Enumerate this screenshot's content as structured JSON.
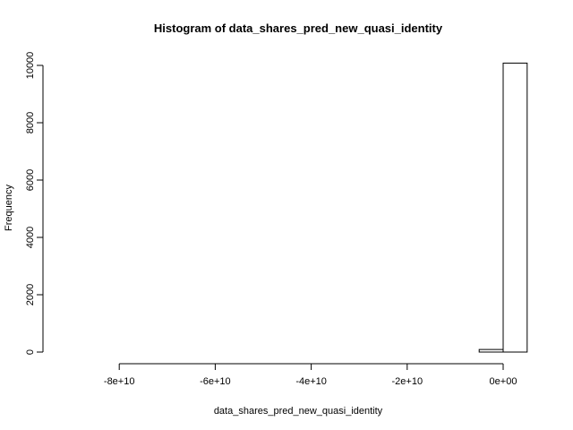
{
  "chart_data": {
    "type": "bar",
    "title": "Histogram of data_shares_pred_new_quasi_identity",
    "xlabel": "data_shares_pred_new_quasi_identity",
    "ylabel": "Frequency",
    "xlim": [
      -90000000000,
      5000000000
    ],
    "ylim": [
      0,
      10000
    ],
    "x_ticks": [
      -80000000000,
      -60000000000,
      -40000000000,
      -20000000000,
      0
    ],
    "x_tick_labels": [
      "-8e+10",
      "-6e+10",
      "-4e+10",
      "-2e+10",
      "0e+00"
    ],
    "y_ticks": [
      0,
      2000,
      4000,
      6000,
      8000,
      10000
    ],
    "y_tick_labels": [
      "0",
      "2000",
      "4000",
      "6000",
      "8000",
      "10000"
    ],
    "bin_width": 5000000000,
    "bins": [
      {
        "x0": -90000000000,
        "x1": -85000000000,
        "count": 0
      },
      {
        "x0": -85000000000,
        "x1": -80000000000,
        "count": 0
      },
      {
        "x0": -80000000000,
        "x1": -75000000000,
        "count": 0
      },
      {
        "x0": -75000000000,
        "x1": -70000000000,
        "count": 0
      },
      {
        "x0": -70000000000,
        "x1": -65000000000,
        "count": 0
      },
      {
        "x0": -65000000000,
        "x1": -60000000000,
        "count": 0
      },
      {
        "x0": -60000000000,
        "x1": -55000000000,
        "count": 0
      },
      {
        "x0": -55000000000,
        "x1": -50000000000,
        "count": 0
      },
      {
        "x0": -50000000000,
        "x1": -45000000000,
        "count": 0
      },
      {
        "x0": -45000000000,
        "x1": -40000000000,
        "count": 0
      },
      {
        "x0": -40000000000,
        "x1": -35000000000,
        "count": 0
      },
      {
        "x0": -35000000000,
        "x1": -30000000000,
        "count": 0
      },
      {
        "x0": -30000000000,
        "x1": -25000000000,
        "count": 0
      },
      {
        "x0": -25000000000,
        "x1": -20000000000,
        "count": 0
      },
      {
        "x0": -20000000000,
        "x1": -15000000000,
        "count": 0
      },
      {
        "x0": -15000000000,
        "x1": -10000000000,
        "count": 0
      },
      {
        "x0": -10000000000,
        "x1": -5000000000,
        "count": 0
      },
      {
        "x0": -5000000000,
        "x1": 0,
        "count": 90
      },
      {
        "x0": 0,
        "x1": 5000000000,
        "count": 10080
      }
    ],
    "grid": false,
    "bar_fill": "#ffffff",
    "bar_stroke": "#000000"
  }
}
